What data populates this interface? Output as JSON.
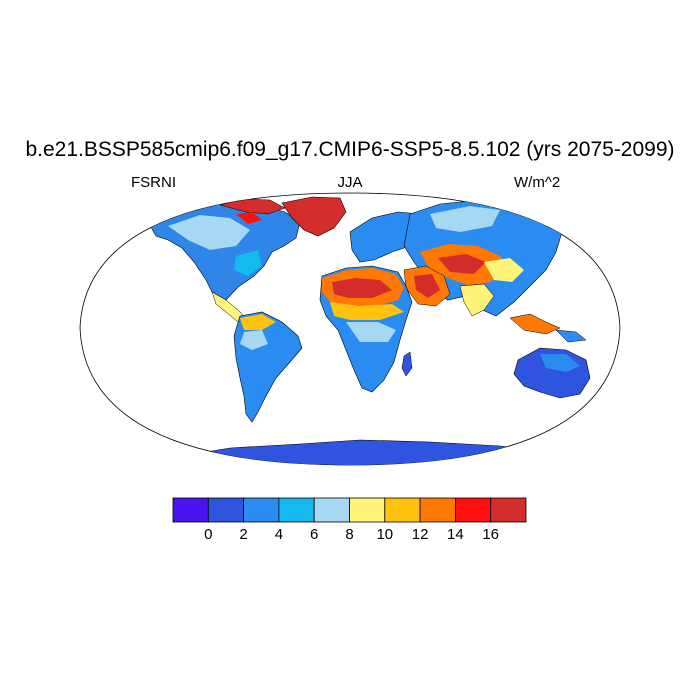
{
  "title": "b.e21.BSSP585cmip6.f09_g17.CMIP6-SSP5-8.5.102 (yrs 2075-2099)",
  "variable": "FSRNI",
  "season": "JJA",
  "units": "W/m^2",
  "colorbar": {
    "colors": [
      "#4a14f0",
      "#2f55e0",
      "#2a8cf0",
      "#14b9f0",
      "#a6d8f4",
      "#fff37a",
      "#ffc20e",
      "#ff7800",
      "#ff0f0f",
      "#d42b2b"
    ],
    "tick_labels": [
      "0",
      "2",
      "4",
      "6",
      "8",
      "10",
      "12",
      "14",
      "16"
    ]
  },
  "colors": {
    "ocean": "#ffffff",
    "coastline": "#000000"
  }
}
